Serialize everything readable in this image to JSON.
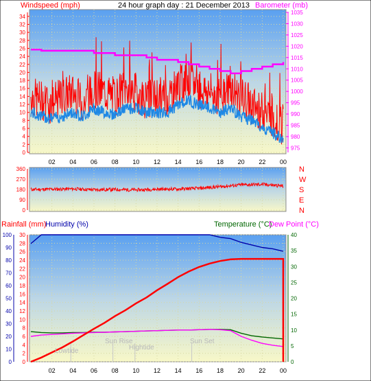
{
  "title": "24 hour graph day : 21 December 2013",
  "colors": {
    "wind_gust": "#ff0000",
    "wind_avg": "#1e88e5",
    "barometer": "#ff00ff",
    "direction": "#ff0000",
    "rain": "#ff0000",
    "humidity": "#0000aa",
    "temperature": "#006600",
    "dewpoint": "#ff00ff",
    "sky_top": "#5aa0f0",
    "sky_bottom": "#f8f8c8",
    "left_axis": "#ff0000",
    "right_axis_baro": "#ff00ff",
    "rain_axis": "#ff0000",
    "hum_axis": "#0000aa",
    "temp_axis": "#006600"
  },
  "chart_data": [
    {
      "type": "line",
      "title": "24 hour graph day : 21 December 2013",
      "ylabel": "Windspeed (mph)",
      "y2label": "Barometer (mb)",
      "ylim": [
        0,
        35
      ],
      "y2lim": [
        973,
        1035
      ],
      "yticks": [
        "0",
        "2",
        "4",
        "6",
        "8",
        "10",
        "12",
        "14",
        "16",
        "18",
        "20",
        "22",
        "24",
        "26",
        "28",
        "30",
        "32",
        "34"
      ],
      "y2ticks": [
        "975",
        "980",
        "985",
        "990",
        "995",
        "1000",
        "1005",
        "1010",
        "1015",
        "1020",
        "1025",
        "1030",
        "1035"
      ],
      "x": [
        0,
        1,
        2,
        3,
        4,
        5,
        6,
        7,
        8,
        9,
        10,
        11,
        12,
        13,
        14,
        15,
        16,
        17,
        18,
        19,
        20,
        21,
        22,
        23,
        24
      ],
      "xticks": [
        "02",
        "04",
        "06",
        "08",
        "10",
        "12",
        "14",
        "16",
        "18",
        "20",
        "22",
        "00"
      ],
      "series": [
        {
          "name": "Windspeed (mph)",
          "key": "gust",
          "values": [
            14,
            13,
            12,
            14,
            15,
            12,
            16,
            15,
            14,
            16,
            15,
            13,
            14,
            14,
            17,
            18,
            16,
            15,
            14,
            16,
            14,
            12,
            10,
            9,
            6
          ]
        },
        {
          "name": "Windspeed (mph)",
          "key": "avg",
          "values": [
            10,
            9,
            8.5,
            9,
            10,
            9,
            11,
            10,
            9.5,
            11,
            11,
            10,
            10,
            10,
            12,
            13,
            12,
            11,
            10,
            11,
            9,
            8,
            6,
            5,
            3
          ]
        },
        {
          "name": "Barometer (mb)",
          "key": "baro",
          "values": [
            1018.5,
            1018,
            1018,
            1018,
            1018,
            1018,
            1017,
            1017,
            1016,
            1016,
            1016,
            1015,
            1014,
            1014,
            1013,
            1012,
            1011,
            1010,
            1009,
            1008,
            1009,
            1010,
            1011,
            1012,
            1013
          ]
        }
      ]
    },
    {
      "type": "line",
      "ylim": [
        0,
        360
      ],
      "yticks": [
        "0",
        "90",
        "180",
        "270",
        "360"
      ],
      "compass": [
        "N",
        "W",
        "S",
        "E",
        "N"
      ],
      "x": [
        0,
        2,
        4,
        6,
        8,
        10,
        12,
        14,
        16,
        18,
        20,
        22,
        24
      ],
      "series": [
        {
          "name": "Wind direction",
          "values": [
            180,
            182,
            185,
            178,
            180,
            176,
            182,
            184,
            190,
            205,
            220,
            225,
            210
          ]
        }
      ]
    },
    {
      "type": "line",
      "ylabel": "Rainfall (mm)",
      "ylabel2": "Humidity (%)",
      "y2label": "Temperature (°C)",
      "y2label2": "Dew Point (°C)",
      "rain_lim": [
        0,
        30
      ],
      "hum_lim": [
        0,
        100
      ],
      "temp_lim": [
        0,
        40
      ],
      "rain_ticks": [
        "0",
        "2",
        "4",
        "6",
        "8",
        "10",
        "12",
        "14",
        "16",
        "18",
        "20",
        "22",
        "24",
        "26",
        "28",
        "30"
      ],
      "hum_ticks": [
        "0",
        "10",
        "20",
        "30",
        "40",
        "50",
        "60",
        "70",
        "80",
        "90",
        "100"
      ],
      "temp_ticks": [
        "0",
        "5",
        "10",
        "15",
        "20",
        "25",
        "30",
        "35",
        "40"
      ],
      "x": [
        0,
        1,
        2,
        3,
        4,
        5,
        6,
        7,
        8,
        9,
        10,
        11,
        12,
        13,
        14,
        15,
        16,
        17,
        18,
        19,
        20,
        21,
        22,
        23,
        24
      ],
      "series": [
        {
          "name": "Rainfall (mm)",
          "key": "rain",
          "values": [
            0,
            1,
            2.2,
            3.4,
            4.8,
            6.3,
            7.8,
            9.2,
            10.8,
            12.2,
            13.8,
            15.2,
            16.9,
            18.4,
            20,
            21.3,
            22.4,
            23.2,
            23.8,
            24.2,
            24.3,
            24.3,
            24.3,
            24.3,
            24.3
          ]
        },
        {
          "name": "Humidity (%)",
          "key": "hum",
          "values": [
            93,
            100,
            100,
            100,
            100,
            100,
            100,
            100,
            100,
            100,
            100,
            100,
            100,
            100,
            100,
            100,
            100,
            100,
            98,
            97,
            94,
            92,
            90,
            89,
            87
          ]
        },
        {
          "name": "Temperature (°C)",
          "key": "temp",
          "values": [
            9.5,
            9.2,
            9.1,
            9.1,
            9.2,
            9.2,
            9.3,
            9.3,
            9.4,
            9.5,
            9.6,
            9.7,
            9.8,
            9.9,
            10,
            10,
            10.1,
            10.2,
            10.2,
            10.1,
            9,
            8.2,
            7.8,
            7.5,
            7.2
          ]
        },
        {
          "name": "Dew Point (°C)",
          "key": "dew",
          "values": [
            8,
            8.4,
            8.6,
            8.8,
            9,
            9.1,
            9.2,
            9.3,
            9.4,
            9.5,
            9.6,
            9.7,
            9.8,
            9.9,
            10,
            10,
            10.1,
            10.2,
            10.1,
            9.8,
            8,
            6.8,
            5.8,
            5.2,
            4.8
          ]
        }
      ],
      "annotations": [
        "Lowtide",
        "Sun Rise",
        "Hightide",
        "Sun Set"
      ]
    }
  ],
  "labels": {
    "windspeed": "Windspeed (mph)",
    "barometer": "Barometer (mb)",
    "rainfall": "Rainfall (mm)",
    "humidity": "Humidity (%)",
    "temperature": "Temperature (°C)",
    "dewpoint": "Dew Point (°C)",
    "lowtide": "Lowtide",
    "sunrise": "Sun Rise",
    "hightide": "Hightide",
    "sunset": "Sun Set"
  }
}
